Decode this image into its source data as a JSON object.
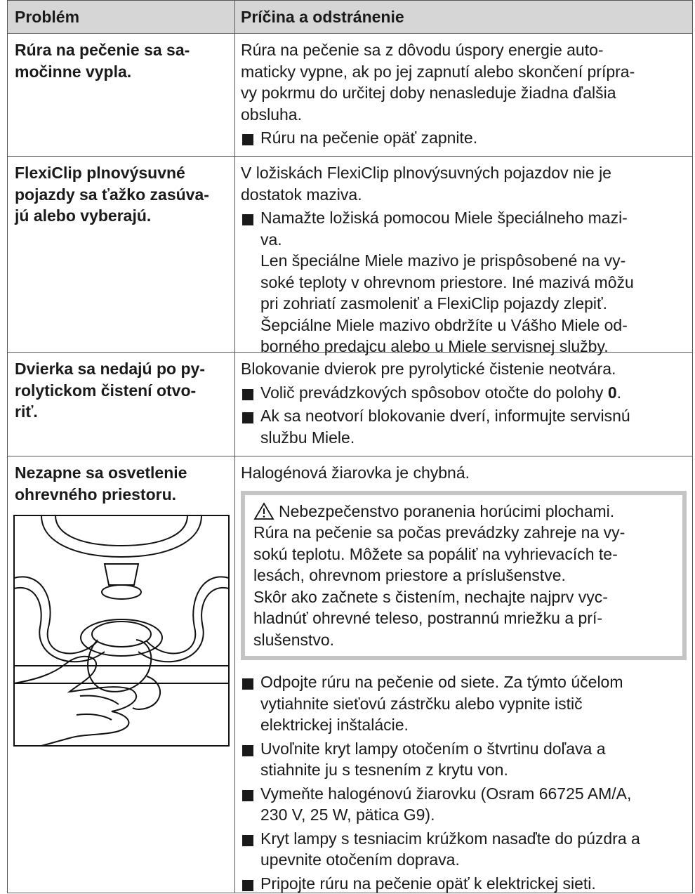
{
  "table": {
    "header": {
      "problem": "Problém",
      "cause": "Príčina a odstránenie"
    },
    "rows": [
      {
        "problem": [
          "Rúra na pečenie sa sa-",
          "močinne vypla."
        ],
        "cause": [
          {
            "kind": "text",
            "lines": [
              "Rúra na pečenie sa z dôvodu úspory energie auto-",
              "maticky vypne, ak po jej zapnutí alebo skončení prípra-",
              "vy pokrmu do určitej doby nenasleduje žiadna ďalšia",
              "obsluha."
            ]
          },
          {
            "kind": "bullet",
            "lines": [
              "Rúru na pečenie opäť zapnite."
            ]
          }
        ]
      },
      {
        "problem": [
          "FlexiClip plnovýsuvné",
          "pojazdy sa ťažko zasúva-",
          "jú alebo vyberajú."
        ],
        "cause": [
          {
            "kind": "text",
            "lines": [
              "V ložiskách FlexiClip plnovýsuvných pojazdov nie je",
              "dostatok maziva."
            ]
          },
          {
            "kind": "bullet",
            "lines": [
              "Namažte ložiská pomocou Miele špeciálneho mazi-",
              "va.",
              "Len špeciálne Miele mazivo je prispôsobené na vy-",
              "soké teploty v ohrevnom priestore. Iné mazivá môžu",
              "pri zohriatí zasmoleniť a FlexiClip pojazdy zlepiť.",
              "Šepciálne Miele mazivo obdržíte u Vášho Miele od-",
              "borného predajcu alebo u Miele servisnej služby."
            ]
          }
        ]
      },
      {
        "problem": [
          "Dvierka sa nedajú po py-",
          "rolytickom čistení otvo-",
          "riť."
        ],
        "cause": [
          {
            "kind": "text",
            "lines": [
              "Blokovanie dvierok pre pyrolytické čistenie neotvára."
            ]
          },
          {
            "kind": "bullet",
            "lines": [
              [
                {
                  "text": "Volič prevádzkových spôsobov otočte do polohy "
                },
                {
                  "text": "0",
                  "bold": true
                },
                {
                  "text": "."
                }
              ]
            ]
          },
          {
            "kind": "bullet",
            "lines": [
              "Ak sa neotvorí blokovanie dverí, informujte servisnú",
              "službu Miele."
            ]
          }
        ]
      },
      {
        "problem": [
          "Nezapne sa osvetlenie",
          "ohrevného priestoru."
        ],
        "illustration": true,
        "cause": [
          {
            "kind": "text",
            "lines": [
              "Halogénová žiarovka je chybná."
            ]
          },
          {
            "kind": "warning",
            "title": "Nebezpečenstvo poranenia horúcimi plochami.",
            "lines": [
              "Rúra na pečenie sa počas prevádzky zahreje na vy-",
              "sokú teplotu. Môžete sa popáliť na vyhrievacích te-",
              "lesách, ohrevnom priestore a príslušenstve.",
              "Skôr ako začnete s čistením, nechajte najprv vyc-",
              "hladnúť ohrevné teleso, postrannú mriežku a prí-",
              "slušenstvo."
            ]
          },
          {
            "kind": "bullet",
            "lines": [
              "Odpojte rúru na pečenie od siete. Za týmto účelom",
              "vytiahnite sieťovú zástrčku alebo vypnite istič",
              "elektrickej inštalácie."
            ]
          },
          {
            "kind": "bullet",
            "lines": [
              "Uvoľnite kryt lampy otočením o štvrtinu doľava a",
              "stiahnite ju s tesnením z krytu von."
            ]
          },
          {
            "kind": "bullet",
            "lines": [
              "Vymeňte halogénovú žiarovku (Osram 66725 AM/A,",
              "230 V, 25 W, pätica G9)."
            ]
          },
          {
            "kind": "bullet",
            "lines": [
              "Kryt lampy s tesniacim krúžkom nasaďte do púzdra a",
              "upevnite otočením doprava."
            ]
          },
          {
            "kind": "bullet",
            "lines": [
              "Pripojte rúru na pečenie opäť k elektrickej sieti."
            ]
          }
        ]
      }
    ]
  }
}
